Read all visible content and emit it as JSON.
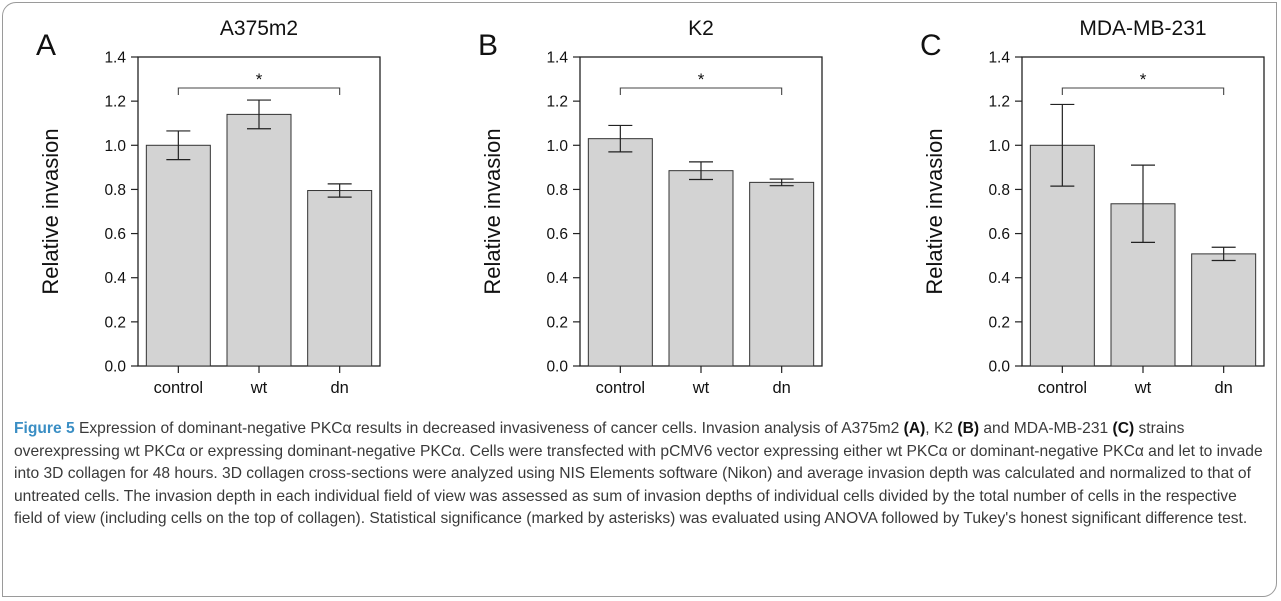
{
  "chart_data": [
    {
      "type": "bar",
      "panel": "A",
      "title": "A375m2",
      "ylabel": "Relative invasion",
      "categories": [
        "control",
        "wt",
        "dn"
      ],
      "values": [
        1.0,
        1.14,
        0.795
      ],
      "errors": [
        0.065,
        0.065,
        0.03
      ],
      "ylim": [
        0,
        1.4
      ],
      "yticks": [
        "0.0",
        "0.2",
        "0.4",
        "0.6",
        "0.8",
        "1.0",
        "1.2",
        "1.4"
      ],
      "significance": {
        "from": "control",
        "to": "dn",
        "label": "*"
      },
      "bar_color": "#d3d3d3"
    },
    {
      "type": "bar",
      "panel": "B",
      "title": "K2",
      "ylabel": "Relative invasion",
      "categories": [
        "control",
        "wt",
        "dn"
      ],
      "values": [
        1.03,
        0.885,
        0.832
      ],
      "errors": [
        0.06,
        0.04,
        0.015
      ],
      "ylim": [
        0,
        1.4
      ],
      "yticks": [
        "0.0",
        "0.2",
        "0.4",
        "0.6",
        "0.8",
        "1.0",
        "1.2",
        "1.4"
      ],
      "significance": {
        "from": "control",
        "to": "dn",
        "label": "*"
      },
      "bar_color": "#d3d3d3"
    },
    {
      "type": "bar",
      "panel": "C",
      "title": "MDA-MB-231",
      "ylabel": "Relative invasion",
      "categories": [
        "control",
        "wt",
        "dn"
      ],
      "values": [
        1.0,
        0.735,
        0.508
      ],
      "errors": [
        0.185,
        0.175,
        0.03
      ],
      "ylim": [
        0,
        1.4
      ],
      "yticks": [
        "0.0",
        "0.2",
        "0.4",
        "0.6",
        "0.8",
        "1.0",
        "1.2",
        "1.4"
      ],
      "significance": {
        "from": "control",
        "to": "dn",
        "label": "*"
      },
      "bar_color": "#d3d3d3"
    }
  ],
  "caption": {
    "label": "Figure 5",
    "p1": " Expression of dominant-negative PKCα results in decreased invasiveness of cancer cells. Invasion analysis of A375m2 ",
    "b1": "(A)",
    "p2": ", K2 ",
    "b2": "(B)",
    "p3": " and MDA-MB-231 ",
    "b3": "(C)",
    "p4": " strains overexpressing wt PKCα or expressing dominant-negative PKCα. Cells were transfected with pCMV6 vector expressing either wt PKCα or dominant-negative PKCα and let to invade into 3D collagen for 48 hours. 3D collagen cross-sections were analyzed using NIS Elements software (Nikon) and average invasion depth was calculated and normalized to that of untreated cells. The invasion depth in each individual field of view was assessed as sum of invasion depths of individual cells divided by the total number of cells in the respective field of view (including cells on the top of collagen). Statistical significance (marked by asterisks) was evaluated using ANOVA followed by Tukey's honest significant difference test."
  }
}
